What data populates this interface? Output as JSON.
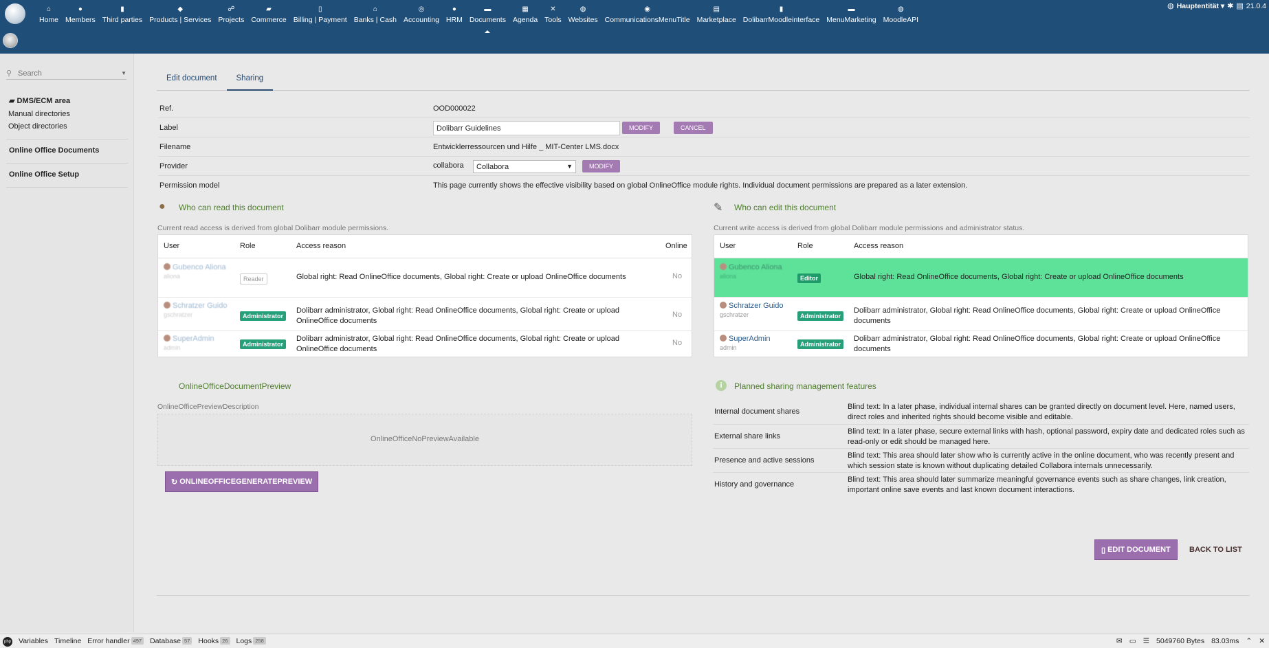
{
  "topbar": {
    "menu": [
      {
        "label": "Home",
        "icon": "home-icon",
        "glyph": "⌂"
      },
      {
        "label": "Members",
        "icon": "member-icon",
        "glyph": "●"
      },
      {
        "label": "Third parties",
        "icon": "building-icon",
        "glyph": "▮"
      },
      {
        "label": "Products | Services",
        "icon": "cube-icon",
        "glyph": "◆"
      },
      {
        "label": "Projects",
        "icon": "sitemap-icon",
        "glyph": "☍"
      },
      {
        "label": "Commerce",
        "icon": "suitcase-icon",
        "glyph": "▰"
      },
      {
        "label": "Billing | Payment",
        "icon": "invoice-icon",
        "glyph": "▯"
      },
      {
        "label": "Banks | Cash",
        "icon": "bank-icon",
        "glyph": "⌂"
      },
      {
        "label": "Accounting",
        "icon": "search-dollar-icon",
        "glyph": "◎"
      },
      {
        "label": "HRM",
        "icon": "user-tie-icon",
        "glyph": "●"
      },
      {
        "label": "Documents",
        "icon": "folder-icon",
        "glyph": "▬"
      },
      {
        "label": "Agenda",
        "icon": "calendar-icon",
        "glyph": "▦"
      },
      {
        "label": "Tools",
        "icon": "tools-icon",
        "glyph": "✕"
      },
      {
        "label": "Websites",
        "icon": "globe-icon",
        "glyph": "◍"
      },
      {
        "label": "CommunicationsMenuTitle",
        "icon": "broadcast-icon",
        "glyph": "◉"
      },
      {
        "label": "Marketplace",
        "icon": "store-icon",
        "glyph": "▤"
      },
      {
        "label": "DolibarrMoodleinterface",
        "icon": "file-icon",
        "glyph": "▮"
      },
      {
        "label": "MenuMarketing",
        "icon": "comment-icon",
        "glyph": "▬"
      },
      {
        "label": "MoodleAPI",
        "icon": "globe-icon",
        "glyph": "◍"
      }
    ],
    "active_menu": "Documents",
    "entity": "Hauptentität",
    "version": "21.0.4"
  },
  "sidebar": {
    "search_placeholder": "Search",
    "dms_title": "DMS/ECM area",
    "manual_dirs": "Manual directories",
    "object_dirs": "Object directories",
    "online_docs": "Online Office Documents",
    "online_setup": "Online Office Setup"
  },
  "tabs": {
    "edit": "Edit document",
    "sharing": "Sharing"
  },
  "document": {
    "ref_label": "Ref.",
    "ref_value": "OOD000022",
    "label_label": "Label",
    "label_value": "Dolibarr Guidelines",
    "modify": "MODIFY",
    "cancel": "CANCEL",
    "filename_label": "Filename",
    "filename_value": "Entwicklerressourcen und Hilfe _ MIT-Center LMS.docx",
    "provider_label": "Provider",
    "provider_code": "collabora",
    "provider_selected": "Collabora",
    "permission_label": "Permission model",
    "permission_value": "This page currently shows the effective visibility based on global OnlineOffice module rights. Individual document permissions are prepared as a later extension."
  },
  "read_panel": {
    "title": "Who can read this document",
    "description": "Current read access is derived from global Dolibarr module permissions.",
    "headers": {
      "user": "User",
      "role": "Role",
      "reason": "Access reason",
      "online": "Online"
    },
    "rows": [
      {
        "name": "Gubenco Aliona",
        "login": "aliona",
        "role": "Reader",
        "reason": "Global right: Read OnlineOffice documents, Global right: Create or upload OnlineOffice documents",
        "online": "No"
      },
      {
        "name": "Schratzer Guido",
        "login": "gschratzer",
        "role": "Administrator",
        "reason": "Dolibarr administrator, Global right: Read OnlineOffice documents, Global right: Create or upload OnlineOffice documents",
        "online": "No"
      },
      {
        "name": "SuperAdmin",
        "login": "admin",
        "role": "Administrator",
        "reason": "Dolibarr administrator, Global right: Read OnlineOffice documents, Global right: Create or upload OnlineOffice documents",
        "online": "No"
      }
    ]
  },
  "edit_panel": {
    "title": "Who can edit this document",
    "description": "Current write access is derived from global Dolibarr module permissions and administrator status.",
    "headers": {
      "user": "User",
      "role": "Role",
      "reason": "Access reason"
    },
    "rows": [
      {
        "name": "Gubenco Aliona",
        "login": "aliona",
        "role": "Editor",
        "reason": "Global right: Read OnlineOffice documents, Global right: Create or upload OnlineOffice documents"
      },
      {
        "name": "Schratzer Guido",
        "login": "gschratzer",
        "role": "Administrator",
        "reason": "Dolibarr administrator, Global right: Read OnlineOffice documents, Global right: Create or upload OnlineOffice documents"
      },
      {
        "name": "SuperAdmin",
        "login": "admin",
        "role": "Administrator",
        "reason": "Dolibarr administrator, Global right: Read OnlineOffice documents, Global right: Create or upload OnlineOffice documents"
      }
    ]
  },
  "preview": {
    "title": "OnlineOfficeDocumentPreview",
    "description": "OnlineOfficePreviewDescription",
    "empty": "OnlineOfficeNoPreviewAvailable",
    "generate": "ONLINEOFFICEGENERATEPREVIEW"
  },
  "planned": {
    "title": "Planned sharing management features",
    "rows": [
      {
        "label": "Internal document shares",
        "text": "Blind text: In a later phase, individual internal shares can be granted directly on document level. Here, named users, direct roles and inherited rights should become visible and editable."
      },
      {
        "label": "External share links",
        "text": "Blind text: In a later phase, secure external links with hash, optional password, expiry date and dedicated roles such as read-only or edit should be managed here."
      },
      {
        "label": "Presence and active sessions",
        "text": "Blind text: This area should later show who is currently active in the online document, who was recently present and which session state is known without duplicating detailed Collabora internals unnecessarily."
      },
      {
        "label": "History and governance",
        "text": "Blind text: This area should later summarize meaningful governance events such as share changes, link creation, important online save events and last known document interactions."
      }
    ]
  },
  "actions": {
    "edit_document": "EDIT DOCUMENT",
    "back_to_list": "BACK TO LIST"
  },
  "debugbar": {
    "items": [
      {
        "label": "Variables",
        "count": ""
      },
      {
        "label": "Timeline",
        "count": ""
      },
      {
        "label": "Error handler",
        "count": "497"
      },
      {
        "label": "Database",
        "count": "57"
      },
      {
        "label": "Hooks",
        "count": "26"
      },
      {
        "label": "Logs",
        "count": "258"
      }
    ],
    "memory": "5049760 Bytes",
    "time": "83.03ms"
  },
  "colors": {
    "topbar": "#1f4e78",
    "accent_purple": "#a37ab1",
    "panel_title_green": "#4f7f2d",
    "highlight_row": "#5ee29a",
    "admin_badge": "#27a07a"
  }
}
